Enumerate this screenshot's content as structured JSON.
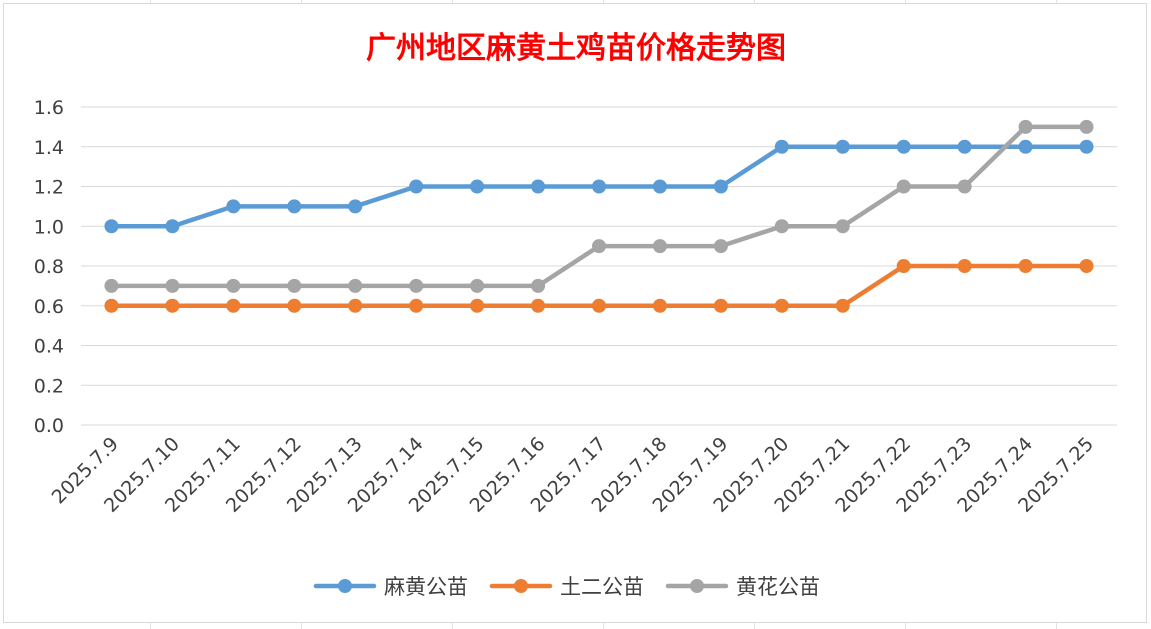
{
  "chart_data": {
    "type": "line",
    "title": "广州地区麻黄土鸡苗价格走势图",
    "title_color": "#ff0000",
    "categories": [
      "2025.7.9",
      "2025.7.10",
      "2025.7.11",
      "2025.7.12",
      "2025.7.13",
      "2025.7.14",
      "2025.7.15",
      "2025.7.16",
      "2025.7.17",
      "2025.7.18",
      "2025.7.19",
      "2025.7.20",
      "2025.7.21",
      "2025.7.22",
      "2025.7.23",
      "2025.7.24",
      "2025.7.25"
    ],
    "series": [
      {
        "name": "麻黄公苗",
        "color": "#5b9bd5",
        "values": [
          1.0,
          1.0,
          1.1,
          1.1,
          1.1,
          1.2,
          1.2,
          1.2,
          1.2,
          1.2,
          1.2,
          1.4,
          1.4,
          1.4,
          1.4,
          1.4,
          1.4
        ]
      },
      {
        "name": "土二公苗",
        "color": "#ed7d31",
        "values": [
          0.6,
          0.6,
          0.6,
          0.6,
          0.6,
          0.6,
          0.6,
          0.6,
          0.6,
          0.6,
          0.6,
          0.6,
          0.6,
          0.8,
          0.8,
          0.8,
          0.8
        ]
      },
      {
        "name": "黄花公苗",
        "color": "#a5a5a5",
        "values": [
          0.7,
          0.7,
          0.7,
          0.7,
          0.7,
          0.7,
          0.7,
          0.7,
          0.9,
          0.9,
          0.9,
          1.0,
          1.0,
          1.2,
          1.2,
          1.5,
          1.5
        ]
      }
    ],
    "yticks": [
      "0.0",
      "0.2",
      "0.4",
      "0.6",
      "0.8",
      "1.0",
      "1.2",
      "1.4",
      "1.6"
    ],
    "ylim": [
      0,
      1.6
    ],
    "xlabel": "",
    "ylabel": "",
    "grid": true,
    "legend_position": "bottom"
  }
}
